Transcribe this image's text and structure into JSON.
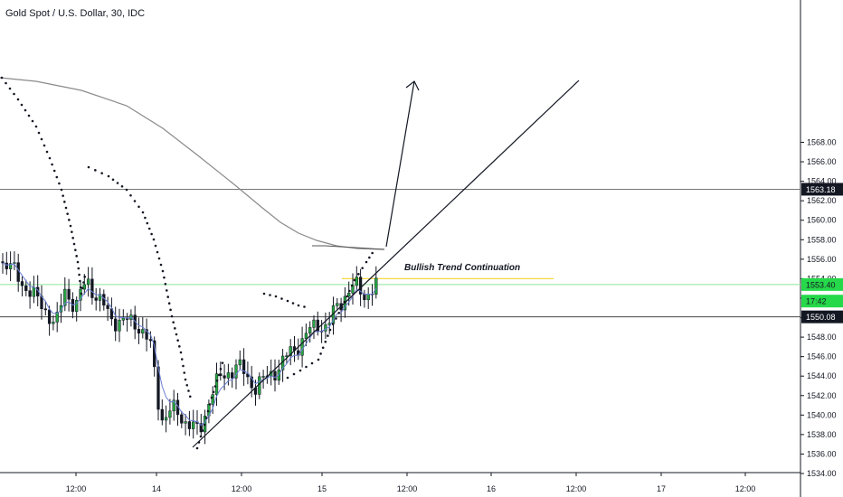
{
  "chart_data": {
    "type": "candlestick",
    "title": "Gold Spot / U.S. Dollar, 30, IDC",
    "annotation": "Bullish Trend Continuation",
    "y_ticks": [
      1534,
      1536,
      1538,
      1540,
      1542,
      1544,
      1546,
      1548,
      1550,
      1552,
      1554,
      1556,
      1558,
      1560,
      1562,
      1564,
      1566,
      1568
    ],
    "x_ticks": [
      "12:00",
      "14",
      "12:00",
      "15",
      "12:00",
      "16",
      "12:00",
      "17",
      "12:00"
    ],
    "price_badges": [
      {
        "label": "1563.18",
        "value": 1563.18,
        "bg": "#131722",
        "fg": "#ffffff"
      },
      {
        "label": "1553.40",
        "value": 1553.4,
        "bg": "#26d94a",
        "fg": "#131722"
      },
      {
        "label": "17:42",
        "value": 1551.7,
        "bg": "#26d94a",
        "fg": "#131722"
      },
      {
        "label": "1550.08",
        "value": 1550.08,
        "bg": "#131722",
        "fg": "#ffffff"
      }
    ],
    "horizontal_lines": [
      {
        "value": 1563.18,
        "color": "#777777"
      },
      {
        "value": 1550.08,
        "color": "#444444"
      },
      {
        "value": 1553.4,
        "color": "#8ee89a"
      }
    ],
    "resistance_segment": {
      "value": 1554.0,
      "color": "#f5d742"
    },
    "colors": {
      "up": "#26a641",
      "down": "#131722",
      "sma_long": "#8a8a8a",
      "sma_short": "#6a7fd4",
      "sar": "#131722",
      "trend": "#131722"
    }
  }
}
